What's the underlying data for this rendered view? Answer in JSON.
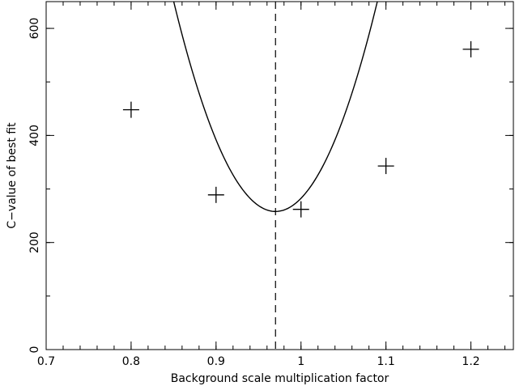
{
  "chart_data": {
    "type": "scatter",
    "xlabel": "Background scale multiplication factor",
    "ylabel": "C−value of best fit",
    "xlim": [
      0.7,
      1.25
    ],
    "ylim": [
      0,
      650
    ],
    "x_ticks": [
      {
        "value": 0.7,
        "label": "0.7"
      },
      {
        "value": 0.8,
        "label": "0.8"
      },
      {
        "value": 0.9,
        "label": "0.9"
      },
      {
        "value": 1.0,
        "label": "1"
      },
      {
        "value": 1.1,
        "label": "1.1"
      },
      {
        "value": 1.2,
        "label": "1.2"
      }
    ],
    "x_minor_step": 0.02,
    "y_ticks": [
      {
        "value": 0,
        "label": "0"
      },
      {
        "value": 200,
        "label": "200"
      },
      {
        "value": 400,
        "label": "400"
      },
      {
        "value": 600,
        "label": "600"
      }
    ],
    "y_minor_step": 100,
    "grid": false,
    "points": [
      {
        "x": 0.8,
        "y": 448
      },
      {
        "x": 0.9,
        "y": 289
      },
      {
        "x": 1.0,
        "y": 262
      },
      {
        "x": 1.1,
        "y": 343
      },
      {
        "x": 1.2,
        "y": 561
      }
    ],
    "fit_curve": {
      "shape": "parabola",
      "x_min": 0.97,
      "y_min": 258,
      "curvature": 27300
    },
    "minimum_line_x": 0.97,
    "colors": {
      "line": "#000000",
      "background": "#ffffff"
    }
  }
}
